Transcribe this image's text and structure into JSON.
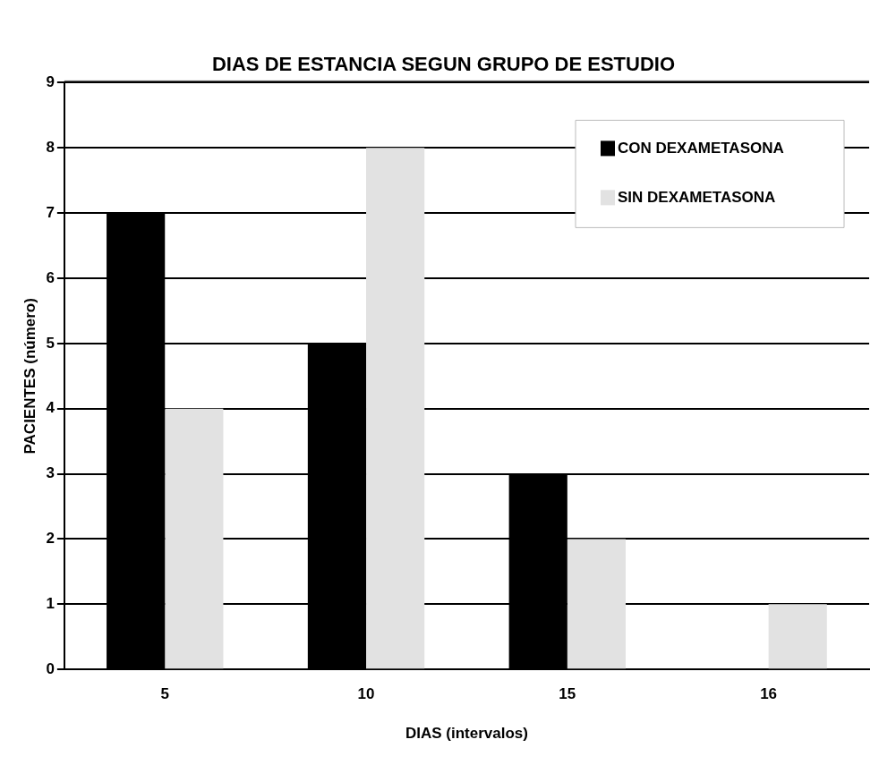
{
  "chart_data": {
    "type": "bar",
    "title": "DIAS DE ESTANCIA SEGUN GRUPO DE ESTUDIO",
    "xlabel": "DIAS (intervalos)",
    "ylabel": "PACIENTES (número)",
    "categories": [
      "5",
      "10",
      "15",
      "16"
    ],
    "series": [
      {
        "name": "CON DEXAMETASONA",
        "color": "#000000",
        "values": [
          7,
          5,
          3,
          0
        ]
      },
      {
        "name": "SIN DEXAMETASONA",
        "color": "#e2e2e2",
        "values": [
          4,
          8,
          2,
          1
        ]
      }
    ],
    "ylim": [
      0,
      9
    ],
    "yticks": [
      0,
      1,
      2,
      3,
      4,
      5,
      6,
      7,
      8,
      9
    ],
    "grid": "y",
    "legend": "top right"
  }
}
